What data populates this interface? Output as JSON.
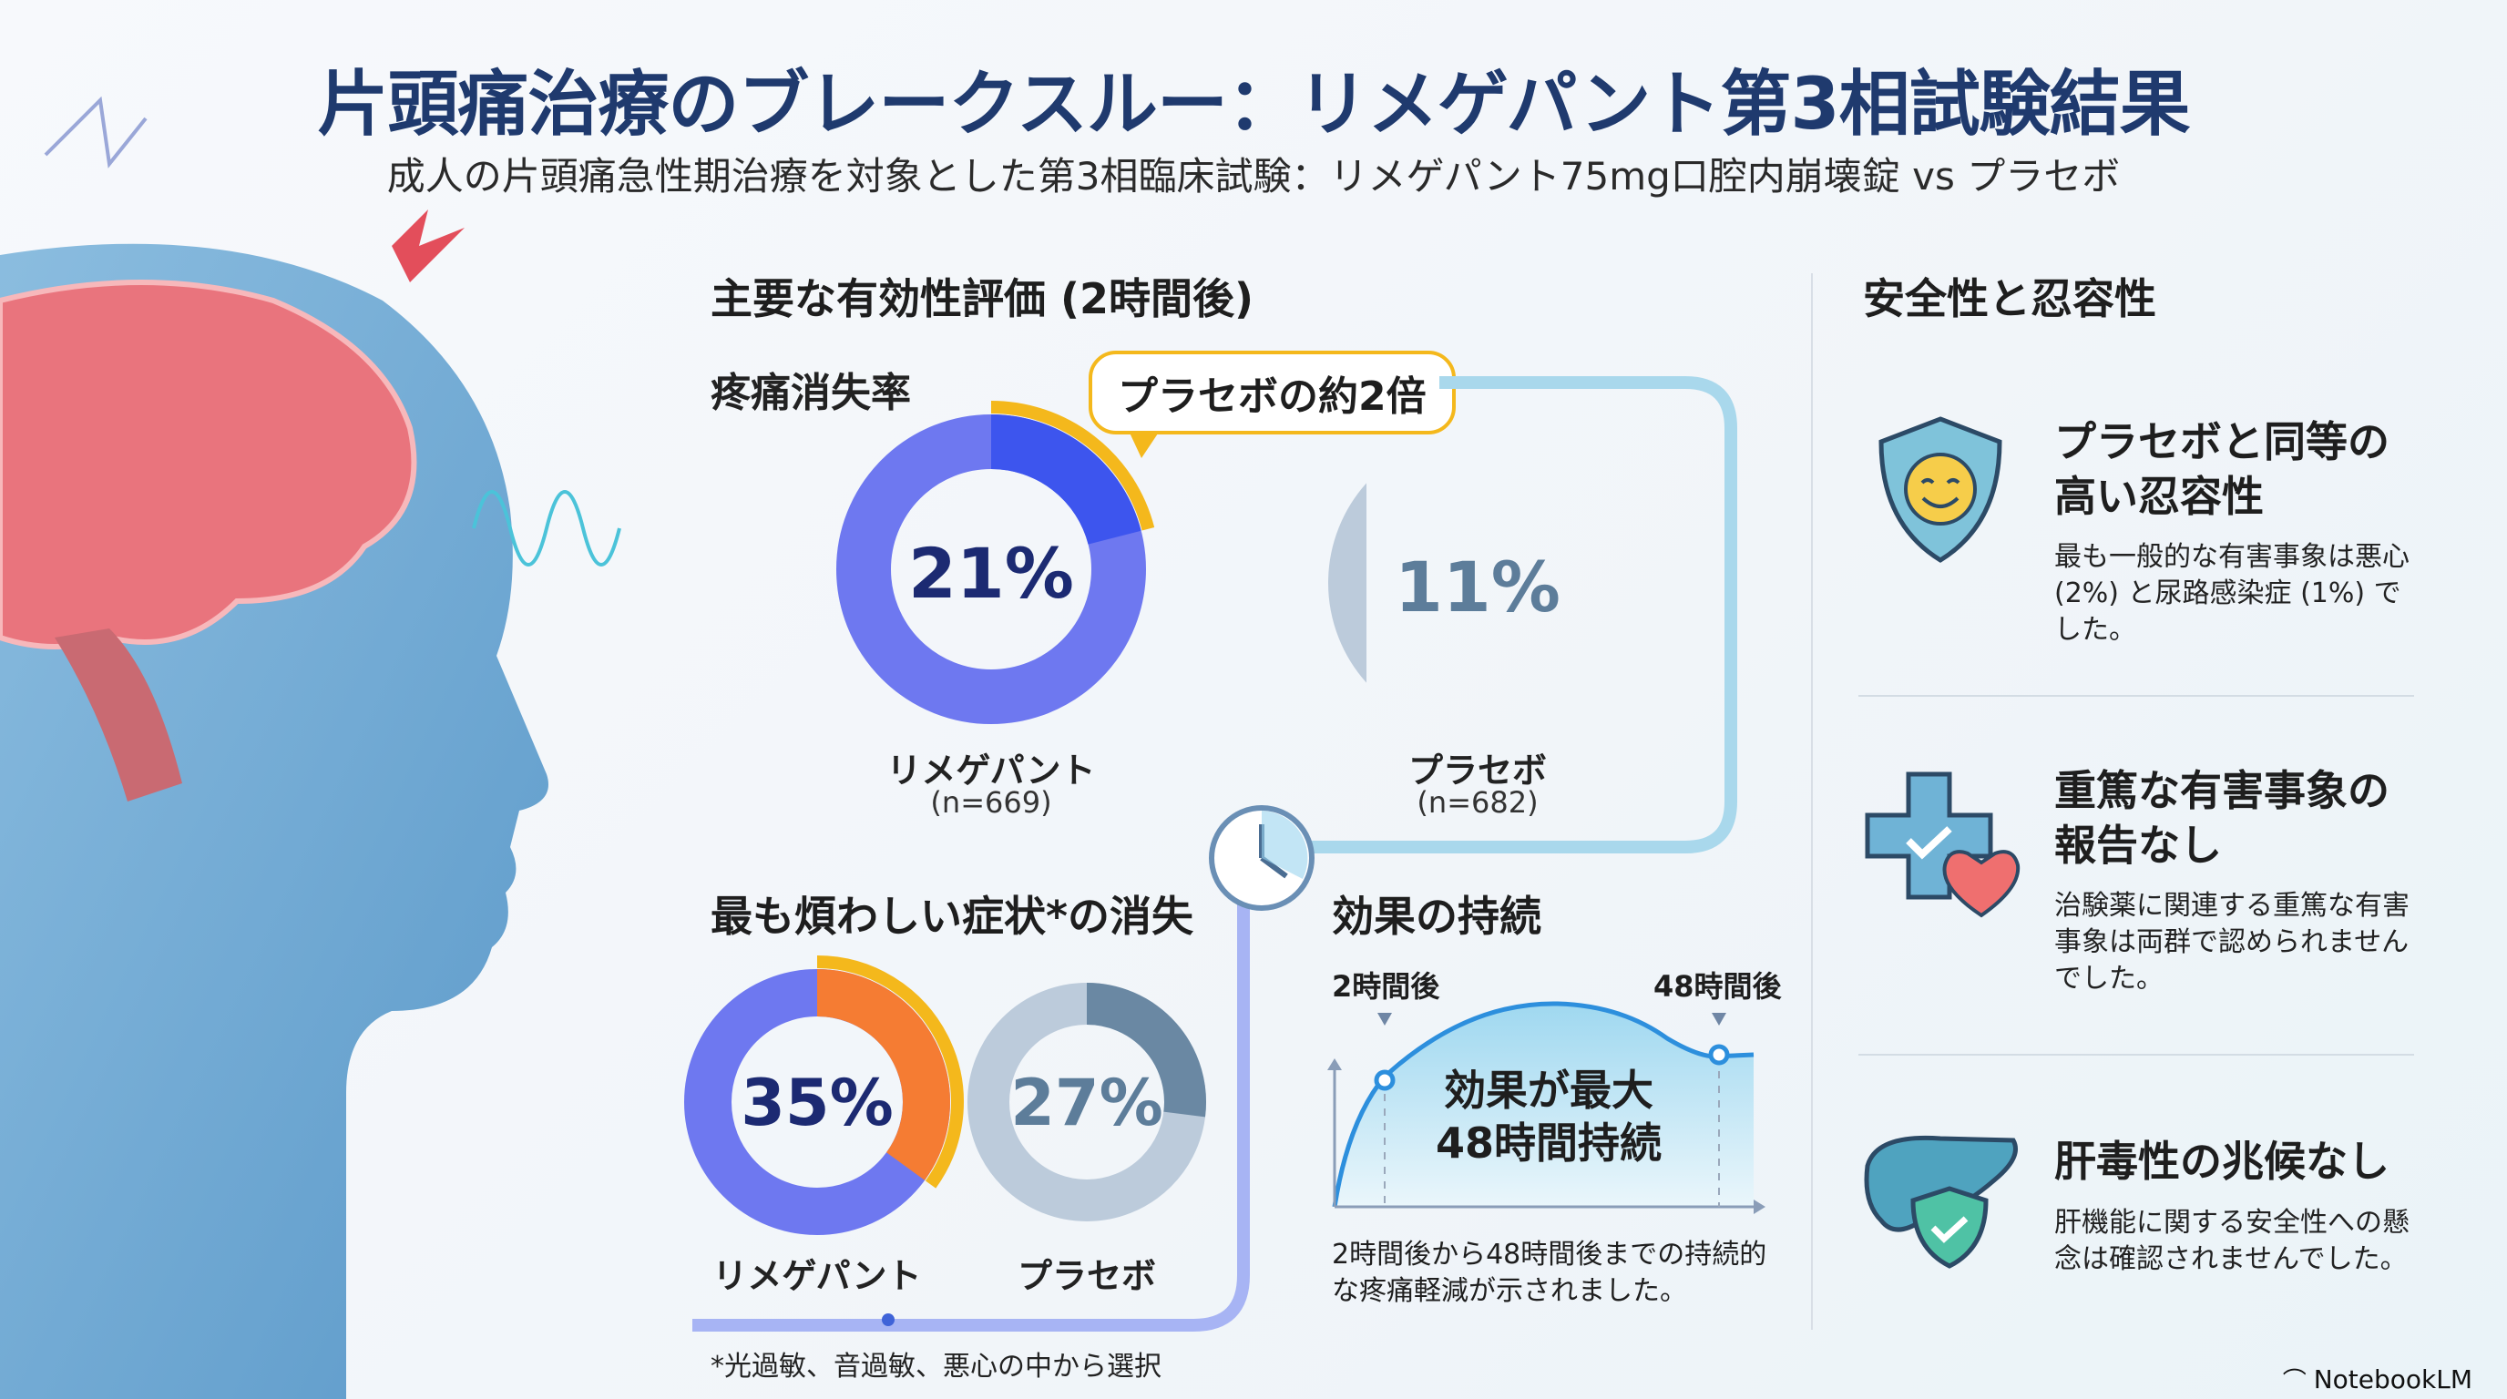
{
  "header": {
    "title": "片頭痛治療のブレークスルー：リメゲパント第3相試験結果",
    "subtitle": "成人の片頭痛急性期治療を対象とした第3相臨床試験：リメゲパント75mg口腔内崩壊錠 vs プラセボ"
  },
  "efficacy": {
    "heading": "主要な有効性評価 (2時間後)",
    "pain_freedom": {
      "heading": "疼痛消失率",
      "callout": "プラセボの約2倍",
      "drug": {
        "label": "リメゲパント",
        "n": "(n=669)",
        "value": 21,
        "display": "21%"
      },
      "placebo": {
        "label": "プラセボ",
        "n": "(n=682)",
        "value": 11,
        "display": "11%"
      }
    },
    "mbs": {
      "heading": "最も煩わしい症状*の消失",
      "drug": {
        "label": "リメゲパント",
        "value": 35,
        "display": "35%"
      },
      "placebo": {
        "label": "プラセボ",
        "value": 27,
        "display": "27%"
      }
    },
    "footnote": "*光過敏、音過敏、悪心の中から選択"
  },
  "duration": {
    "heading": "効果の持続",
    "marker_start": "2時間後",
    "marker_end": "48時間後",
    "center_text_1": "効果が最大",
    "center_text_2": "48時間持続",
    "caption": "2時間後から48時間後までの持続的な疼痛軽減が示されました。"
  },
  "safety": {
    "heading": "安全性と忍容性",
    "items": [
      {
        "icon": "shield-smile-icon",
        "title_1": "プラセボと同等の",
        "title_2": "高い忍容性",
        "body": "最も一般的な有害事象は悪心 (2%) と尿路感染症 (1%) でした。"
      },
      {
        "icon": "medical-cross-heart-icon",
        "title_1": "重篤な有害事象の",
        "title_2": "報告なし",
        "body": "治験薬に関連する重篤な有害事象は両群で認められませんでした。"
      },
      {
        "icon": "liver-shield-icon",
        "title_1": "肝毒性の兆候なし",
        "title_2": "",
        "body": "肝機能に関する安全性への懸念は確認されませんでした。"
      }
    ]
  },
  "colors": {
    "title": "#1f3a6e",
    "drug": "#6e78f0",
    "drug_highlight": "#3d55ee",
    "mbs_highlight": "#f57c33",
    "accent": "#f4b81c",
    "placebo": "#bccbdb",
    "placebo_highlight": "#6a88a3"
  },
  "brand": "NotebookLM"
}
